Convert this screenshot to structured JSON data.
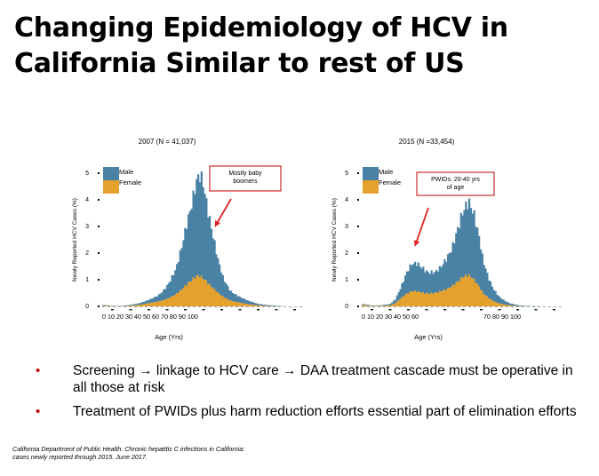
{
  "slide": {
    "title_line1": "Changing Epidemiology of HCV in",
    "title_line2": "California Similar to rest of US"
  },
  "chart_data": [
    {
      "type": "bar",
      "title": "2007 (N = 41,037)",
      "xlabel": "Age (Yrs)",
      "ylabel": "Newly Reported HCV Cases (%)",
      "ylim": [
        0,
        5
      ],
      "xlim": [
        0,
        100
      ],
      "yticks": [
        "0",
        "1",
        "2",
        "3",
        "4",
        "5"
      ],
      "xtick_label": "0 10 20 30 40 50 60 70 80 90 100",
      "legend": [
        "Male",
        "Female"
      ],
      "legend_position": "top-left",
      "stacked": true,
      "series_colors": {
        "Male": "#4a82a6",
        "Female": "#e4a12e"
      },
      "annotation": {
        "text": [
          "Mostly baby",
          "boomers"
        ],
        "border_color": "#c00000",
        "arrow_color": "#e02020"
      },
      "x": [
        1,
        5,
        10,
        15,
        20,
        23,
        26,
        30,
        33,
        36,
        40,
        43,
        46,
        49,
        51,
        53,
        55,
        57,
        60,
        63,
        66,
        70,
        75,
        80,
        85,
        90,
        95,
        100
      ],
      "series": [
        {
          "name": "Female",
          "values": [
            0.03,
            0.01,
            0.01,
            0.03,
            0.06,
            0.09,
            0.13,
            0.18,
            0.24,
            0.32,
            0.45,
            0.6,
            0.8,
            1.0,
            1.15,
            1.2,
            1.1,
            0.95,
            0.7,
            0.5,
            0.35,
            0.22,
            0.15,
            0.08,
            0.04,
            0.02,
            0.01,
            0.0
          ]
        },
        {
          "name": "Male",
          "values": [
            0.02,
            0.01,
            0.01,
            0.03,
            0.06,
            0.09,
            0.13,
            0.22,
            0.36,
            0.58,
            0.95,
            1.5,
            2.2,
            2.9,
            3.6,
            3.95,
            3.7,
            2.9,
            2.0,
            1.2,
            0.65,
            0.35,
            0.22,
            0.12,
            0.05,
            0.03,
            0.02,
            0.0
          ]
        }
      ]
    },
    {
      "type": "bar",
      "title": "2015 (N =33,454)",
      "xlabel": "Age (Yrs)",
      "ylabel": "Newly Reported HCV Cases (%)",
      "ylim": [
        0,
        5
      ],
      "xlim": [
        0,
        100
      ],
      "yticks": [
        "0",
        "1",
        "2",
        "3",
        "4",
        "5"
      ],
      "xtick_label_left": "0 10 20 30 40 50 60",
      "xtick_label_right": "70 80 90 100",
      "legend": [
        "Male",
        "Female"
      ],
      "legend_position": "top-left",
      "stacked": true,
      "series_colors": {
        "Male": "#4a82a6",
        "Female": "#e4a12e"
      },
      "annotation": {
        "text": [
          "PWIDs: 20-40 yrs",
          "of age"
        ],
        "border_color": "#c00000",
        "arrow_color": "#e02020"
      },
      "x": [
        1,
        5,
        10,
        15,
        18,
        21,
        24,
        27,
        30,
        33,
        36,
        40,
        43,
        46,
        49,
        52,
        55,
        58,
        61,
        64,
        66,
        69,
        72,
        75,
        78,
        81,
        84,
        87,
        90,
        95,
        100
      ],
      "series": [
        {
          "name": "Female",
          "values": [
            0.05,
            0.02,
            0.02,
            0.04,
            0.12,
            0.3,
            0.45,
            0.55,
            0.57,
            0.53,
            0.5,
            0.5,
            0.55,
            0.62,
            0.75,
            0.95,
            1.15,
            1.2,
            1.0,
            0.72,
            0.5,
            0.33,
            0.2,
            0.12,
            0.07,
            0.04,
            0.02,
            0.01,
            0.01,
            0.0,
            0.0
          ]
        },
        {
          "name": "Male",
          "values": [
            0.03,
            0.01,
            0.02,
            0.05,
            0.15,
            0.4,
            0.75,
            1.0,
            1.05,
            0.95,
            0.82,
            0.78,
            0.88,
            1.1,
            1.4,
            2.0,
            2.55,
            2.8,
            2.4,
            1.75,
            1.2,
            0.75,
            0.45,
            0.25,
            0.14,
            0.07,
            0.04,
            0.02,
            0.01,
            0.01,
            0.0
          ]
        }
      ]
    }
  ],
  "bullets": [
    {
      "bullet": "•",
      "text": "Screening → linkage to HCV care → DAA treatment cascade must be operative in all those at risk"
    },
    {
      "bullet": "•",
      "text": "Treatment of PWIDs plus harm reduction efforts essential part of elimination efforts"
    }
  ],
  "citation": {
    "line1": "California Department of Public Health. Chronic hepatitis C infections in California:",
    "line2": "cases newly reported through 2015. June 2017."
  }
}
